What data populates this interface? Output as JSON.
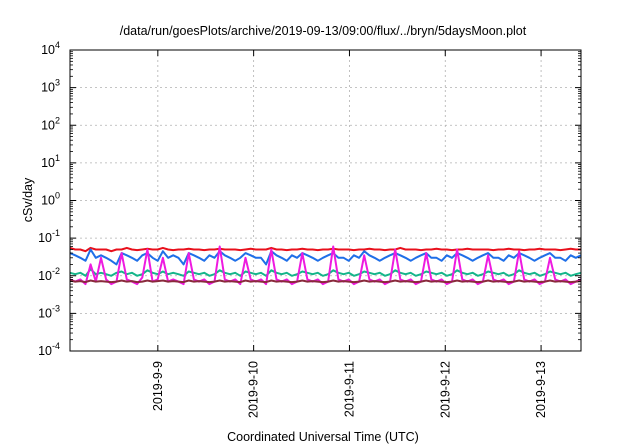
{
  "chart_data": {
    "type": "line",
    "title": "/data/run/goesPlots/archive/2019-09-13/09:00/flux/../bryn/5daysMoon.plot",
    "xlabel": "Coordinated Universal Time (UTC)",
    "ylabel": "cSv/day",
    "yscale": "log",
    "ylim": [
      0.0001,
      10000
    ],
    "xlim": [
      "2019-09-08 02:00",
      "2019-09-13 10:00"
    ],
    "grid": true,
    "y_ticks": [
      {
        "value": 0.0001,
        "base": "10",
        "exp": "-4"
      },
      {
        "value": 0.001,
        "base": "10",
        "exp": "-3"
      },
      {
        "value": 0.01,
        "base": "10",
        "exp": "-2"
      },
      {
        "value": 0.1,
        "base": "10",
        "exp": "-1"
      },
      {
        "value": 1,
        "base": "10",
        "exp": "0"
      },
      {
        "value": 10,
        "base": "10",
        "exp": "1"
      },
      {
        "value": 100,
        "base": "10",
        "exp": "2"
      },
      {
        "value": 1000,
        "base": "10",
        "exp": "3"
      },
      {
        "value": 10000,
        "base": "10",
        "exp": "4"
      }
    ],
    "x_ticks": [
      "2019-9-9",
      "2019-9-10",
      "2019-9-11",
      "2019-9-12",
      "2019-9-13"
    ],
    "series": [
      {
        "color": "#e8101c",
        "values": [
          0.055,
          0.05,
          0.05,
          0.045,
          0.055,
          0.05,
          0.05,
          0.05,
          0.045,
          0.05,
          0.05,
          0.055,
          0.05,
          0.048,
          0.05,
          0.052,
          0.05,
          0.05,
          0.055,
          0.05,
          0.048,
          0.05,
          0.05,
          0.052,
          0.05,
          0.05,
          0.048,
          0.05,
          0.05,
          0.052,
          0.05,
          0.05,
          0.05,
          0.048,
          0.05,
          0.052,
          0.05,
          0.05,
          0.05,
          0.055,
          0.05,
          0.05,
          0.048,
          0.05,
          0.05,
          0.052,
          0.05,
          0.05,
          0.048,
          0.05,
          0.05,
          0.052,
          0.05,
          0.05,
          0.05,
          0.048,
          0.05,
          0.05,
          0.052,
          0.05,
          0.05,
          0.048,
          0.05,
          0.05,
          0.055,
          0.05,
          0.05,
          0.05,
          0.048,
          0.05,
          0.05,
          0.052,
          0.05,
          0.05,
          0.048,
          0.05,
          0.05,
          0.052,
          0.05,
          0.05,
          0.05,
          0.05,
          0.048,
          0.05,
          0.05,
          0.052,
          0.05,
          0.05,
          0.048,
          0.05,
          0.05,
          0.052,
          0.05,
          0.05,
          0.05,
          0.048,
          0.05,
          0.052,
          0.05,
          0.05
        ]
      },
      {
        "color": "#1f6fe8",
        "values": [
          0.04,
          0.035,
          0.03,
          0.025,
          0.05,
          0.03,
          0.035,
          0.03,
          0.025,
          0.02,
          0.04,
          0.035,
          0.03,
          0.025,
          0.035,
          0.04,
          0.03,
          0.025,
          0.045,
          0.03,
          0.035,
          0.03,
          0.02,
          0.04,
          0.035,
          0.03,
          0.025,
          0.035,
          0.03,
          0.045,
          0.035,
          0.03,
          0.025,
          0.03,
          0.04,
          0.035,
          0.03,
          0.03,
          0.02,
          0.045,
          0.035,
          0.03,
          0.025,
          0.035,
          0.03,
          0.04,
          0.035,
          0.03,
          0.025,
          0.03,
          0.035,
          0.04,
          0.03,
          0.03,
          0.025,
          0.035,
          0.03,
          0.045,
          0.035,
          0.03,
          0.025,
          0.03,
          0.035,
          0.04,
          0.035,
          0.03,
          0.025,
          0.03,
          0.035,
          0.04,
          0.03,
          0.03,
          0.025,
          0.035,
          0.03,
          0.04,
          0.035,
          0.03,
          0.025,
          0.03,
          0.035,
          0.04,
          0.03,
          0.03,
          0.025,
          0.035,
          0.03,
          0.04,
          0.035,
          0.03,
          0.025,
          0.03,
          0.035,
          0.04,
          0.03,
          0.03,
          0.025,
          0.035,
          0.03,
          0.035
        ]
      },
      {
        "color": "#15b58a",
        "values": [
          0.012,
          0.011,
          0.012,
          0.01,
          0.015,
          0.011,
          0.012,
          0.011,
          0.01,
          0.012,
          0.013,
          0.011,
          0.012,
          0.01,
          0.011,
          0.014,
          0.012,
          0.011,
          0.013,
          0.011,
          0.012,
          0.011,
          0.01,
          0.013,
          0.012,
          0.011,
          0.012,
          0.01,
          0.011,
          0.014,
          0.012,
          0.011,
          0.012,
          0.01,
          0.013,
          0.012,
          0.011,
          0.012,
          0.01,
          0.014,
          0.012,
          0.011,
          0.012,
          0.01,
          0.011,
          0.013,
          0.012,
          0.011,
          0.012,
          0.01,
          0.011,
          0.014,
          0.012,
          0.011,
          0.012,
          0.01,
          0.011,
          0.013,
          0.012,
          0.011,
          0.012,
          0.01,
          0.011,
          0.014,
          0.012,
          0.011,
          0.012,
          0.01,
          0.011,
          0.013,
          0.012,
          0.011,
          0.012,
          0.01,
          0.011,
          0.014,
          0.012,
          0.011,
          0.012,
          0.01,
          0.011,
          0.013,
          0.012,
          0.011,
          0.012,
          0.01,
          0.011,
          0.014,
          0.012,
          0.011,
          0.012,
          0.01,
          0.011,
          0.013,
          0.012,
          0.011,
          0.012,
          0.01,
          0.011,
          0.012
        ]
      },
      {
        "color": "#ee1ae0",
        "values": [
          0.008,
          0.007,
          0.008,
          0.006,
          0.02,
          0.007,
          0.03,
          0.008,
          0.006,
          0.007,
          0.04,
          0.008,
          0.007,
          0.006,
          0.009,
          0.05,
          0.007,
          0.008,
          0.03,
          0.007,
          0.008,
          0.007,
          0.006,
          0.04,
          0.008,
          0.007,
          0.008,
          0.006,
          0.007,
          0.06,
          0.008,
          0.007,
          0.008,
          0.006,
          0.03,
          0.008,
          0.007,
          0.008,
          0.006,
          0.05,
          0.008,
          0.007,
          0.008,
          0.006,
          0.007,
          0.04,
          0.008,
          0.007,
          0.008,
          0.006,
          0.007,
          0.06,
          0.008,
          0.007,
          0.008,
          0.006,
          0.007,
          0.035,
          0.008,
          0.007,
          0.008,
          0.006,
          0.007,
          0.05,
          0.008,
          0.007,
          0.008,
          0.006,
          0.007,
          0.04,
          0.008,
          0.007,
          0.008,
          0.006,
          0.007,
          0.05,
          0.008,
          0.007,
          0.008,
          0.006,
          0.007,
          0.035,
          0.008,
          0.007,
          0.008,
          0.006,
          0.007,
          0.045,
          0.008,
          0.007,
          0.008,
          0.006,
          0.007,
          0.03,
          0.008,
          0.007,
          0.008,
          0.006,
          0.007,
          0.008
        ]
      },
      {
        "color": "#8a2a3c",
        "values": [
          0.0075,
          0.007,
          0.0072,
          0.0068,
          0.0075,
          0.007,
          0.0072,
          0.007,
          0.0068,
          0.007,
          0.0075,
          0.007,
          0.0072,
          0.0068,
          0.007,
          0.0075,
          0.007,
          0.0072,
          0.0075,
          0.007,
          0.0072,
          0.007,
          0.0068,
          0.0075,
          0.007,
          0.0072,
          0.007,
          0.0068,
          0.007,
          0.0075,
          0.007,
          0.0072,
          0.007,
          0.0068,
          0.0075,
          0.007,
          0.0072,
          0.007,
          0.0068,
          0.0075,
          0.007,
          0.0072,
          0.007,
          0.0068,
          0.007,
          0.0075,
          0.007,
          0.0072,
          0.007,
          0.0068,
          0.007,
          0.0075,
          0.007,
          0.0072,
          0.007,
          0.0068,
          0.007,
          0.0075,
          0.007,
          0.0072,
          0.007,
          0.0068,
          0.007,
          0.0075,
          0.007,
          0.0072,
          0.007,
          0.0068,
          0.007,
          0.0075,
          0.007,
          0.0072,
          0.007,
          0.0068,
          0.007,
          0.0075,
          0.007,
          0.0072,
          0.007,
          0.0068,
          0.007,
          0.0075,
          0.007,
          0.0072,
          0.007,
          0.0068,
          0.007,
          0.0075,
          0.007,
          0.0072,
          0.007,
          0.0068,
          0.007,
          0.0075,
          0.007,
          0.0072,
          0.007,
          0.0068,
          0.007,
          0.0072
        ]
      }
    ]
  }
}
